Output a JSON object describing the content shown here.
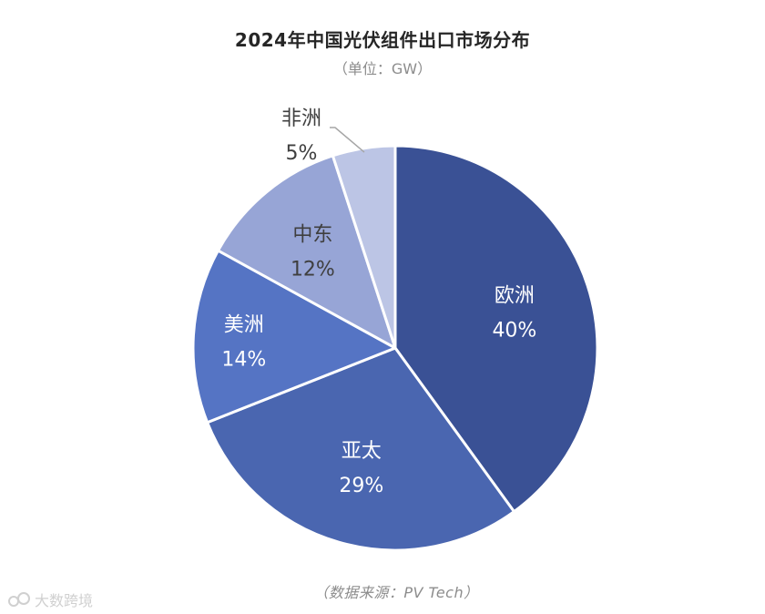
{
  "chart_data": {
    "type": "pie",
    "title": "2024年中国光伏组件出口市场分布",
    "subtitle": "（单位：GW）",
    "source": "（数据来源：PV Tech）",
    "slices": [
      {
        "label": "欧洲",
        "value": 40,
        "value_label": "40%",
        "color": "#3A5195",
        "text_color": "#ffffff"
      },
      {
        "label": "亚太",
        "value": 29,
        "value_label": "29%",
        "color": "#4A66B0",
        "text_color": "#ffffff"
      },
      {
        "label": "美洲",
        "value": 14,
        "value_label": "14%",
        "color": "#5574C4",
        "text_color": "#ffffff"
      },
      {
        "label": "中东",
        "value": 12,
        "value_label": "12%",
        "color": "#97A5D6",
        "text_color": "#3f3f3f"
      },
      {
        "label": "非洲",
        "value": 5,
        "value_label": "5%",
        "color": "#BCC5E5",
        "text_color": "#3f3f3f"
      }
    ],
    "start_angle_deg": 0,
    "direction": "clockwise",
    "legend": "none"
  },
  "watermark": {
    "text": "大数跨境"
  }
}
